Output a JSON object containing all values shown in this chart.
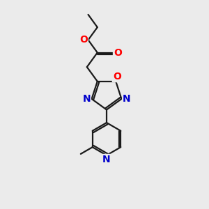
{
  "bg_color": "#ebebeb",
  "bond_color": "#1a1a1a",
  "oxygen_color": "#ff0000",
  "nitrogen_color": "#0000cc",
  "line_width": 1.6,
  "font_size": 10,
  "fig_size": [
    3.0,
    3.0
  ],
  "dpi": 100,
  "xlim": [
    0,
    10
  ],
  "ylim": [
    0,
    10
  ]
}
